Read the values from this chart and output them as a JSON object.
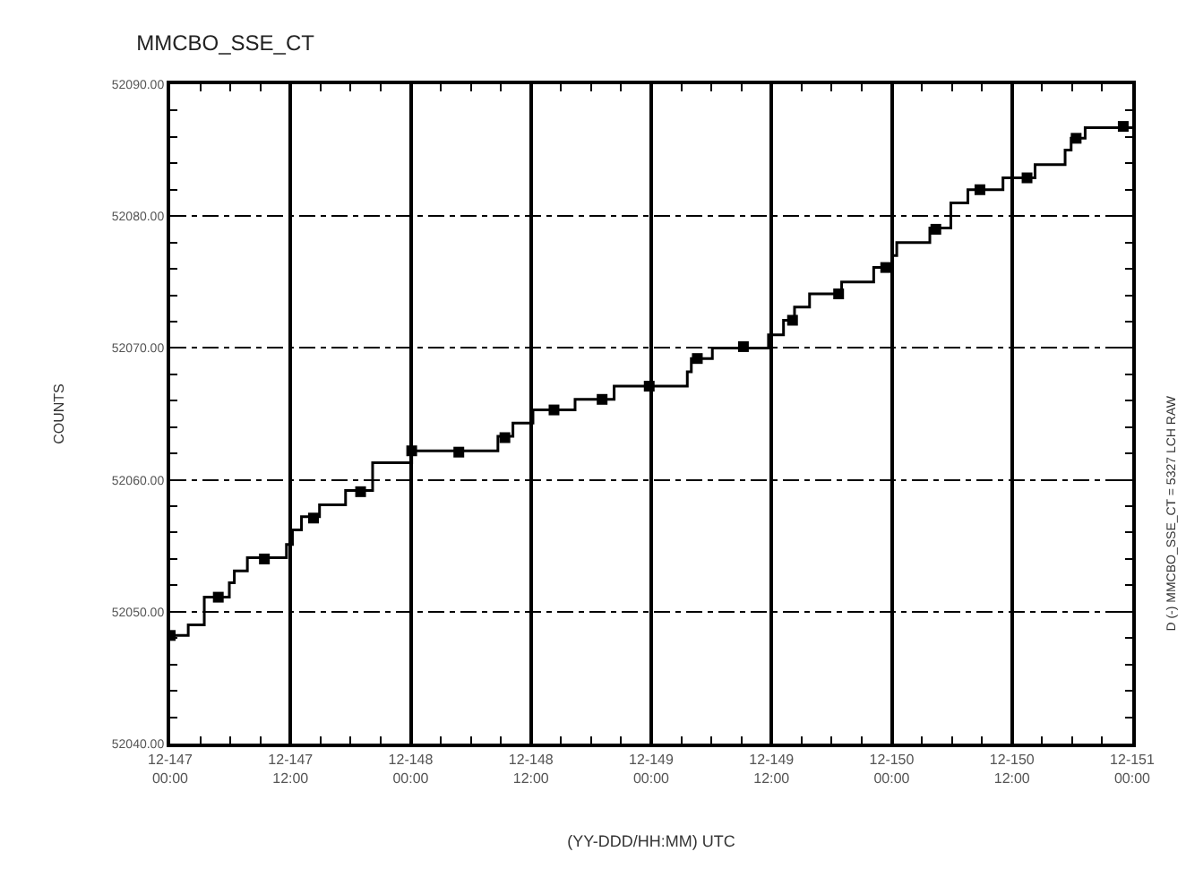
{
  "chart_data": {
    "type": "step",
    "title": "MMCBO_SSE_CT",
    "xlabel": "(YY-DDD/HH:MM) UTC",
    "ylabel": "COUNTS",
    "annotations": [
      "D (-) MMCBO_SSE_CT = 5327 LCH RAW"
    ],
    "xlim": [
      "--05-26T00:00",
      "--05-30T00:00"
    ],
    "xticks": [
      {
        "value": "--05-26T00:00",
        "label": "12-147\n00:00"
      },
      {
        "value": "--05-26T12:00",
        "label": "12-147\n12:00"
      },
      {
        "value": "--05-27T00:00",
        "label": "12-148\n00:00"
      },
      {
        "value": "--05-27T12:00",
        "label": "12-148\n12:00"
      },
      {
        "value": "--05-28T00:00",
        "label": "12-149\n00:00"
      },
      {
        "value": "--05-28T12:00",
        "label": "12-149\n12:00"
      },
      {
        "value": "--05-29T00:00",
        "label": "12-150\n00:00"
      },
      {
        "value": "--05-29T12:00",
        "label": "12-150\n12:00"
      },
      {
        "value": "--05-30T00:00",
        "label": "12-151\n00:00"
      }
    ],
    "ylim": [
      52040,
      52090
    ],
    "yticks": [
      {
        "value": 52040,
        "label": "52040.00"
      },
      {
        "value": 52050,
        "label": "52050.00"
      },
      {
        "value": 52060,
        "label": "52060.00"
      },
      {
        "value": 52070,
        "label": "52070.00"
      },
      {
        "value": 52080,
        "label": "52080.00"
      },
      {
        "value": 52090,
        "label": "52090.00"
      }
    ],
    "grid": true,
    "series": [
      {
        "color": "#000000",
        "marker": "none",
        "x": [
          "--05-26T00:00",
          "--05-26T01:48",
          "--05-26T03:24",
          "--05-26T05:54",
          "--05-26T06:24",
          "--05-26T07:42",
          "--05-26T11:36",
          "--05-26T12:12",
          "--05-26T13:06",
          "--05-26T14:54",
          "--05-26T17:30",
          "--05-26T20:12",
          "--05-27T00:06",
          "--05-27T08:42",
          "--05-27T10:12",
          "--05-27T12:12",
          "--05-27T16:24",
          "--05-27T20:18",
          "--05-28T03:36",
          "--05-28T04:00",
          "--05-28T06:06",
          "--05-28T11:42",
          "--05-28T13:12",
          "--05-28T14:18",
          "--05-28T15:48",
          "--05-28T19:00",
          "--05-28T22:12",
          "--05-29T00:00",
          "--05-29T00:30",
          "--05-29T03:48",
          "--05-29T05:54",
          "--05-29T07:36",
          "--05-29T11:06",
          "--05-29T14:18",
          "--05-29T17:18",
          "--05-29T17:54",
          "--05-29T19:18",
          "--05-30T00:00"
        ],
        "values": [
          52048.2,
          52049.0,
          52051.1,
          52052.2,
          52053.1,
          52054.1,
          52055.1,
          52056.2,
          52057.2,
          52058.1,
          52059.2,
          52061.3,
          52062.2,
          52063.3,
          52064.3,
          52065.3,
          52066.1,
          52067.1,
          52068.2,
          52069.2,
          52070.0,
          52071.0,
          52072.1,
          52073.1,
          52074.1,
          52075.0,
          52076.1,
          52077.0,
          52078.0,
          52079.1,
          52081.0,
          52082.0,
          52082.9,
          52083.9,
          52085.0,
          52085.9,
          52086.7,
          52086.7
        ]
      },
      {
        "type": "scatter",
        "color": "#000000",
        "marker": "square",
        "x": [
          "--05-26T00:00",
          "--05-26T04:48",
          "--05-26T09:24",
          "--05-26T14:18",
          "--05-26T19:00",
          "--05-27T00:06",
          "--05-27T04:48",
          "--05-27T09:24",
          "--05-27T14:18",
          "--05-27T19:06",
          "--05-27T23:48",
          "--05-28T04:36",
          "--05-28T09:12",
          "--05-28T14:06",
          "--05-28T18:42",
          "--05-28T23:24",
          "--05-29T04:24",
          "--05-29T08:48",
          "--05-29T13:30",
          "--05-29T18:24",
          "--05-29T23:06"
        ],
        "values": [
          52048.2,
          52051.1,
          52054.0,
          52057.1,
          52059.1,
          52062.2,
          52062.1,
          52063.2,
          52065.3,
          52066.1,
          52067.1,
          52069.2,
          52070.1,
          52072.1,
          52074.1,
          52076.1,
          52079.0,
          52082.0,
          52082.9,
          52085.9,
          52086.8
        ]
      }
    ]
  }
}
